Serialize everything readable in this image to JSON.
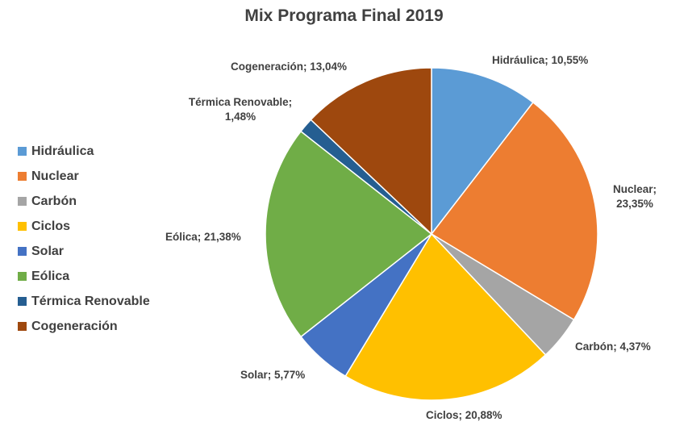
{
  "chart_data": {
    "type": "pie",
    "title": "Mix Programa Final 2019",
    "legend_position": "left",
    "series": [
      {
        "name": "Hidráulica",
        "value": 10.55,
        "label": "Hidráulica; 10,55%",
        "color": "#5B9BD5"
      },
      {
        "name": "Nuclear",
        "value": 23.35,
        "label": "Nuclear; 23,35%",
        "color": "#ED7D31"
      },
      {
        "name": "Carbón",
        "value": 4.37,
        "label": "Carbón; 4,37%",
        "color": "#A5A5A5"
      },
      {
        "name": "Ciclos",
        "value": 20.88,
        "label": "Ciclos; 20,88%",
        "color": "#FFC000"
      },
      {
        "name": "Solar",
        "value": 5.77,
        "label": "Solar; 5,77%",
        "color": "#4472C4"
      },
      {
        "name": "Eólica",
        "value": 21.38,
        "label": "Eólica; 21,38%",
        "color": "#70AD47"
      },
      {
        "name": "Térmica Renovable",
        "value": 1.48,
        "label": "Térmica Renovable; 1,48%",
        "color": "#255E91"
      },
      {
        "name": "Cogeneración",
        "value": 13.04,
        "label": "Cogeneración; 13,04%",
        "color": "#9E480E"
      }
    ]
  }
}
